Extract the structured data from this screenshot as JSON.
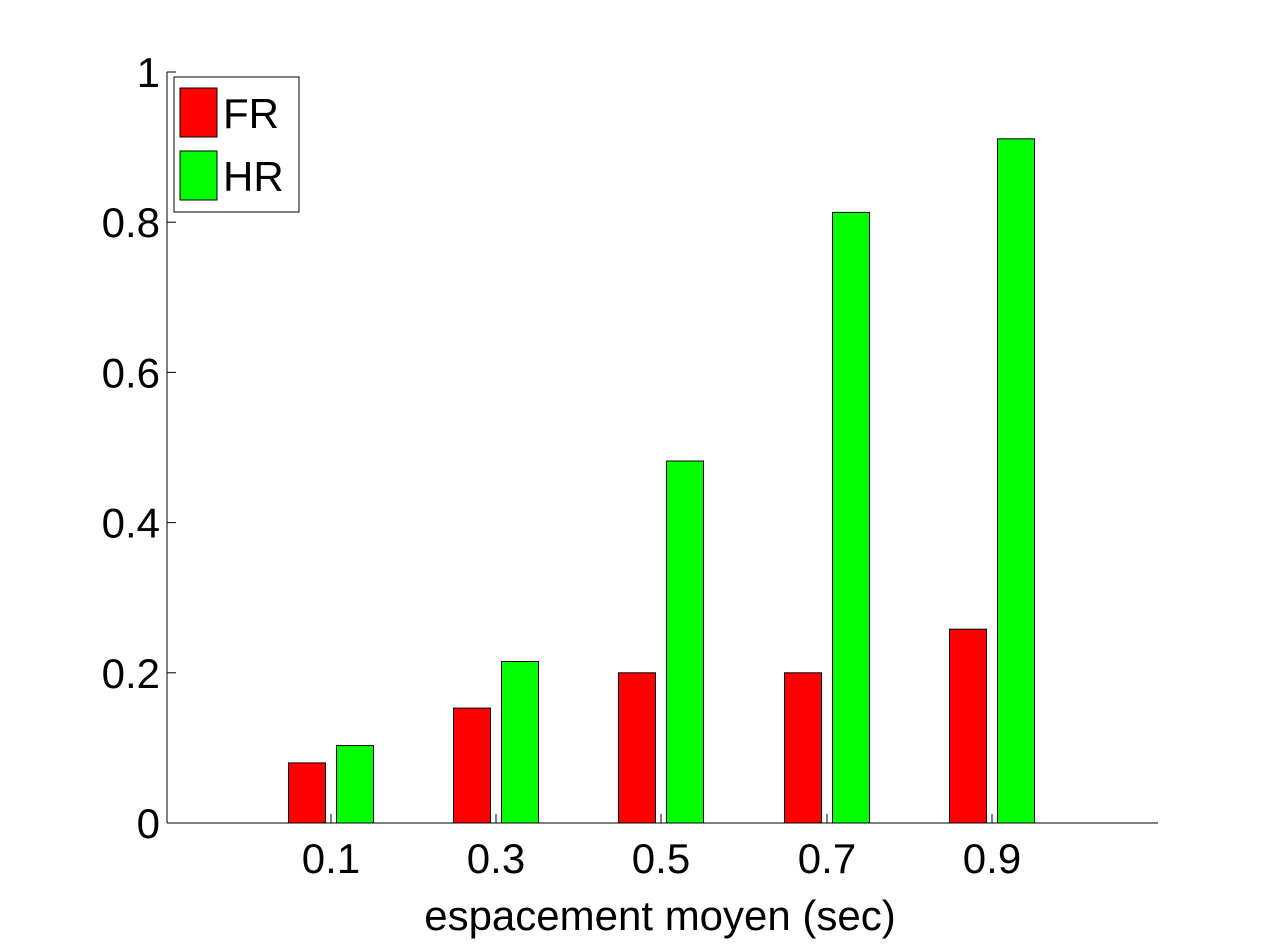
{
  "chart_data": {
    "type": "bar",
    "categories": [
      "0.1",
      "0.3",
      "0.5",
      "0.7",
      "0.9"
    ],
    "series": [
      {
        "name": "FR",
        "values": [
          0.08,
          0.153,
          0.2,
          0.2,
          0.258
        ],
        "color": "#ff0000"
      },
      {
        "name": "HR",
        "values": [
          0.103,
          0.215,
          0.482,
          0.813,
          0.911
        ],
        "color": "#00ff00"
      }
    ],
    "title": "",
    "xlabel": "espacement moyen (sec)",
    "ylabel": "",
    "ylim": [
      0,
      1
    ],
    "yticks": [
      "0",
      "0.2",
      "0.4",
      "0.6",
      "0.8",
      "1"
    ],
    "grid": false,
    "legend_position": "top-left"
  }
}
